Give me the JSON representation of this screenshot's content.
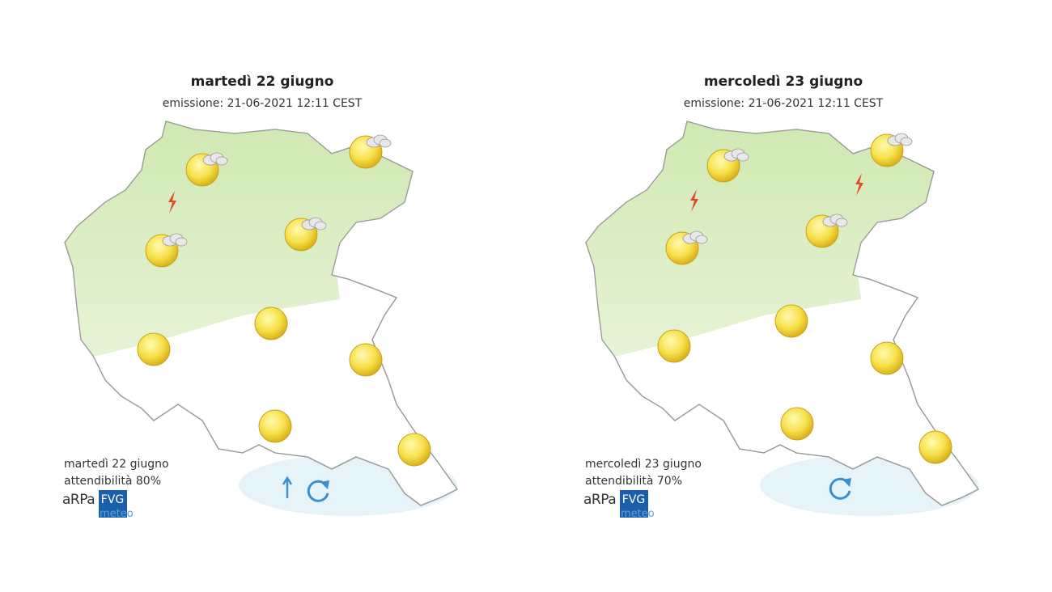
{
  "panels": [
    {
      "title": "martedì 22 giugno",
      "issued": "emissione: 21-06-2021 12:11 CEST",
      "footer": {
        "date": "martedì 22 giugno",
        "reliability": "attendibilità 80%"
      },
      "logo": {
        "arpa": "aRPa",
        "fvg": "FVG",
        "meteo": "meteo"
      }
    },
    {
      "title": "mercoledì 23 giugno",
      "issued": "emissione: 21-06-2021 12:11 CEST",
      "footer": {
        "date": "mercoledì 23 giugno",
        "reliability": "attendibilità 70%"
      },
      "logo": {
        "arpa": "aRPa",
        "fvg": "FVG",
        "meteo": "meteo"
      }
    }
  ]
}
